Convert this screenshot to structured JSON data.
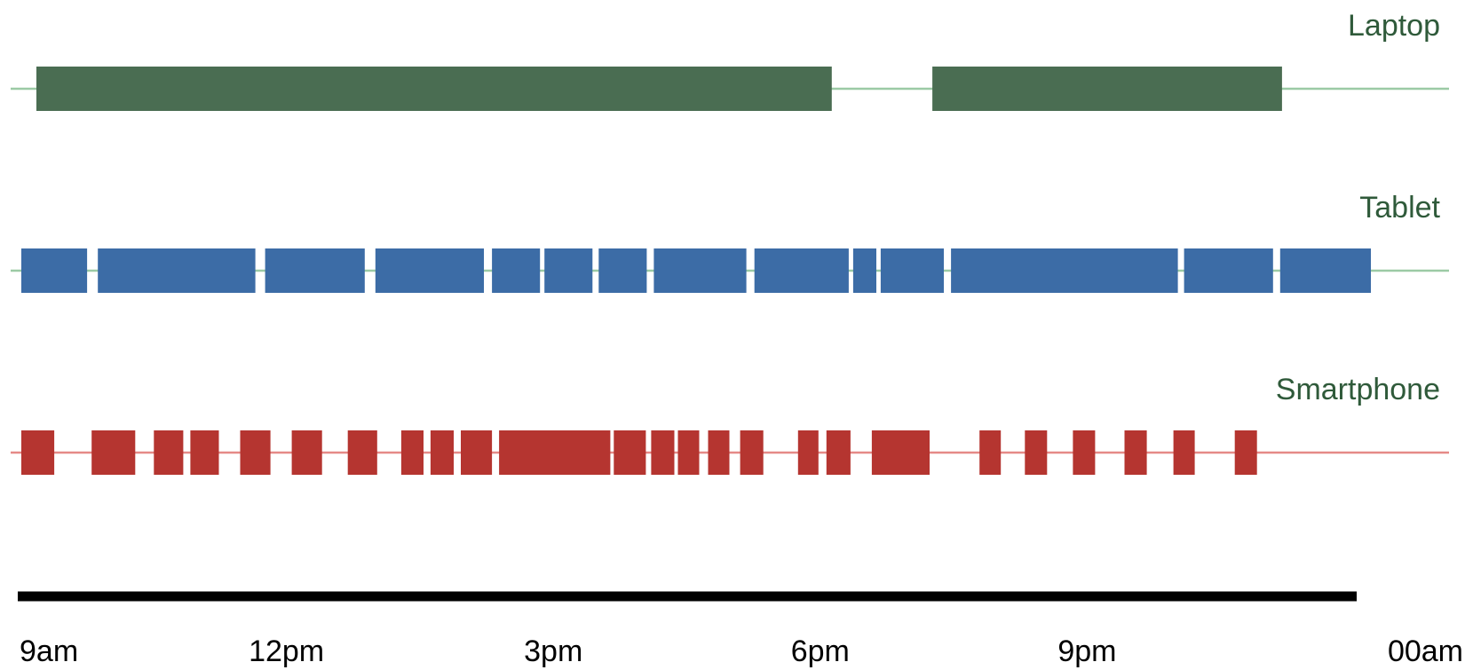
{
  "chart_data": {
    "type": "timeline",
    "title": "",
    "xlabel": "",
    "ylabel": "",
    "x_unit": "hours after 9am",
    "xlim": [
      0,
      15
    ],
    "ticks": [
      {
        "label": "9am",
        "value": 0
      },
      {
        "label": "12pm",
        "value": 3
      },
      {
        "label": "3pm",
        "value": 6
      },
      {
        "label": "6pm",
        "value": 9
      },
      {
        "label": "9pm",
        "value": 12
      },
      {
        "label": "00am",
        "value": 15
      }
    ],
    "series": [
      {
        "name": "Laptop",
        "color": "#4a6d52",
        "line_color": "#9ccaa5",
        "label_color": "#2f5a3a",
        "segments": [
          [
            0.19,
            9.13
          ],
          [
            10.26,
            14.19
          ]
        ]
      },
      {
        "name": "Tablet",
        "color": "#3c6ca6",
        "line_color": "#9ccaa5",
        "label_color": "#2f5a3a",
        "segments": [
          [
            0.02,
            0.76
          ],
          [
            0.88,
            2.65
          ],
          [
            2.76,
            3.88
          ],
          [
            4.0,
            5.22
          ],
          [
            5.31,
            5.85
          ],
          [
            5.9,
            6.44
          ],
          [
            6.51,
            7.05
          ],
          [
            7.13,
            8.17
          ],
          [
            8.26,
            9.32
          ],
          [
            9.37,
            9.63
          ],
          [
            9.68,
            10.39
          ],
          [
            10.47,
            13.02
          ],
          [
            13.09,
            14.09
          ],
          [
            14.17,
            15.19
          ]
        ]
      },
      {
        "name": "Smartphone",
        "color": "#b53530",
        "line_color": "#e58a87",
        "label_color": "#2f5a3a",
        "segments": [
          [
            0.02,
            0.39
          ],
          [
            0.81,
            1.3
          ],
          [
            1.51,
            1.84
          ],
          [
            1.92,
            2.24
          ],
          [
            2.48,
            2.82
          ],
          [
            3.06,
            3.4
          ],
          [
            3.69,
            4.02
          ],
          [
            4.29,
            4.54
          ],
          [
            4.62,
            4.88
          ],
          [
            4.96,
            5.31
          ],
          [
            5.39,
            6.64
          ],
          [
            6.68,
            7.04
          ],
          [
            7.1,
            7.36
          ],
          [
            7.4,
            7.64
          ],
          [
            7.74,
            7.98
          ],
          [
            8.1,
            8.36
          ],
          [
            8.75,
            8.98
          ],
          [
            9.07,
            9.34
          ],
          [
            9.58,
            10.23
          ],
          [
            10.79,
            11.03
          ],
          [
            11.3,
            11.55
          ],
          [
            11.84,
            12.09
          ],
          [
            12.42,
            12.67
          ],
          [
            12.97,
            13.21
          ],
          [
            13.66,
            13.91
          ]
        ]
      }
    ],
    "grid": false,
    "legend": "lane labels top-right of each lane"
  }
}
